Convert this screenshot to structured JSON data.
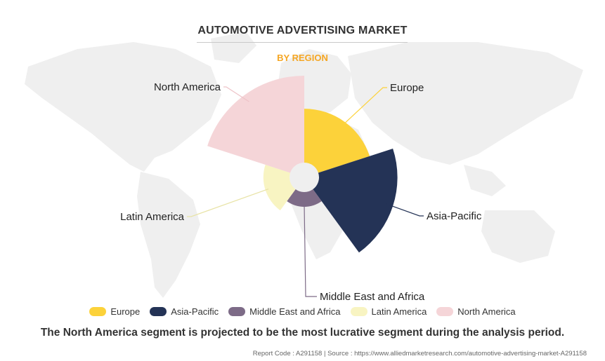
{
  "header": {
    "title": "AUTOMOTIVE ADVERTISING MARKET",
    "subtitle": "BY REGION"
  },
  "colors": {
    "accent": "#f5a623",
    "Europe": "#fcd23a",
    "Asia-Pacific": "#243356",
    "Middle East and Africa": "#7d6b87",
    "Latin America": "#f8f4c2",
    "North America": "#f5d5d8"
  },
  "chart_data": {
    "type": "polar-area",
    "title": "AUTOMOTIVE ADVERTISING MARKET",
    "subtitle": "BY REGION",
    "categories": [
      "Europe",
      "Asia-Pacific",
      "Middle East and Africa",
      "Latin America",
      "North America"
    ],
    "relative_radius": [
      0.62,
      0.9,
      0.17,
      0.3,
      1.0
    ],
    "legend_position": "bottom"
  },
  "footer": {
    "note": "The North America segment is projected to be the most lucrative segment during the analysis period.",
    "source": "Report Code : A291158  |  Source : https://www.alliedmarketresearch.com/automotive-advertising-market-A291158"
  }
}
